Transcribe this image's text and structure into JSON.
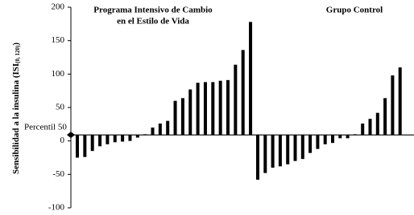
{
  "chart_data": {
    "type": "bar",
    "y_label": {
      "main": "Sensibilidad a la insulina (ISI",
      "sub": "(0, 120)",
      "end": ")"
    },
    "ylim": [
      -100,
      200
    ],
    "yticks": [
      -100,
      -50,
      0,
      50,
      100,
      150,
      200
    ],
    "reference_line": {
      "value": 9,
      "label": "Percentil 50"
    },
    "color": "#000000",
    "groups": [
      {
        "title": [
          "Programa Intensivo de Cambio",
          "en el Estilo de Vida"
        ],
        "values": [
          -25,
          -24,
          -15,
          -8,
          -5,
          -2,
          -1,
          0,
          5,
          10,
          20,
          26,
          30,
          60,
          64,
          77,
          87,
          88,
          88,
          90,
          91,
          114,
          136,
          178
        ]
      },
      {
        "title": [
          "Grupo Control"
        ],
        "values": [
          -58,
          -48,
          -40,
          -38,
          -35,
          -30,
          -27,
          -18,
          -12,
          -5,
          -3,
          4,
          4,
          10,
          26,
          33,
          42,
          64,
          98,
          110
        ]
      }
    ]
  }
}
